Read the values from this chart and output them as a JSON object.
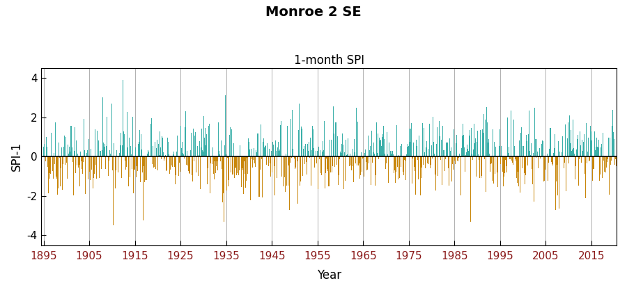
{
  "title": "Monroe 2 SE",
  "subtitle": "1-month SPI",
  "ylabel": "SPI-1",
  "xlabel": "Year",
  "start_year": 1895,
  "end_year": 2021,
  "ylim": [
    -4.5,
    4.5
  ],
  "yticks": [
    -4,
    -2,
    0,
    2,
    4
  ],
  "xticks": [
    1895,
    1905,
    1915,
    1925,
    1935,
    1945,
    1955,
    1965,
    1975,
    1985,
    1995,
    2005,
    2015
  ],
  "color_positive": "#3aafa9",
  "color_negative": "#c8860a",
  "background_color": "#ffffff",
  "grid_color": "#b0b0b0",
  "title_fontsize": 14,
  "subtitle_fontsize": 12,
  "label_fontsize": 12,
  "tick_fontsize": 11,
  "xtick_color": "#8B1A1A",
  "seed": 42
}
